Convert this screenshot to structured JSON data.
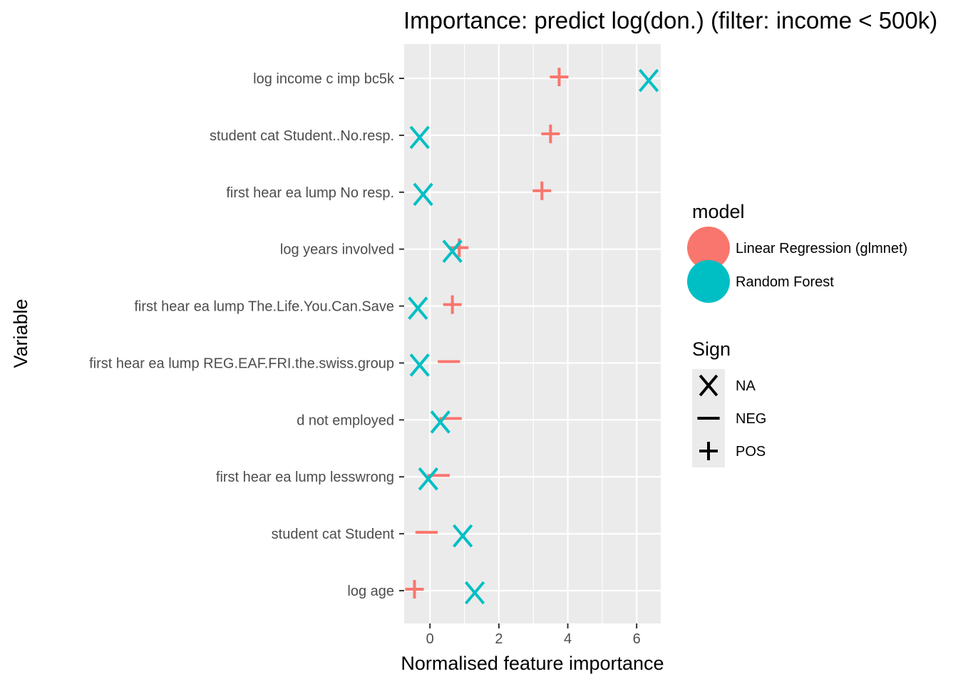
{
  "chart_data": {
    "type": "scatter",
    "title": "Importance: predict log(don.) (filter: income < 500k)",
    "xlabel": "Normalised feature importance",
    "ylabel": "Variable",
    "xlim": [
      -0.75,
      6.7
    ],
    "x_ticks": [
      0,
      2,
      4,
      6
    ],
    "grid": true,
    "legend_position": "right",
    "categories": [
      "log age",
      "student cat Student",
      "first hear ea lump lesswrong",
      "d not employed",
      "first hear ea lump REG.EAF.FRI.the.swiss.group",
      "first hear ea lump The.Life.You.Can.Save",
      "log years involved",
      "first hear ea lump No resp.",
      "student cat Student..No.resp.",
      "log income c imp bc5k"
    ],
    "series": [
      {
        "name": "Linear Regression (glmnet)",
        "color": "#F8766D",
        "points": [
          {
            "category": "log age",
            "x": -0.45,
            "sign": "POS"
          },
          {
            "category": "student cat Student",
            "x": -0.1,
            "sign": "NEG"
          },
          {
            "category": "first hear ea lump lesswrong",
            "x": 0.25,
            "sign": "NEG"
          },
          {
            "category": "d not employed",
            "x": 0.6,
            "sign": "NEG"
          },
          {
            "category": "first hear ea lump REG.EAF.FRI.the.swiss.group",
            "x": 0.55,
            "sign": "NEG"
          },
          {
            "category": "first hear ea lump The.Life.You.Can.Save",
            "x": 0.65,
            "sign": "POS"
          },
          {
            "category": "log years involved",
            "x": 0.85,
            "sign": "POS"
          },
          {
            "category": "first hear ea lump No resp.",
            "x": 3.25,
            "sign": "POS"
          },
          {
            "category": "student cat Student..No.resp.",
            "x": 3.5,
            "sign": "POS"
          },
          {
            "category": "log income c imp bc5k",
            "x": 3.75,
            "sign": "POS"
          }
        ]
      },
      {
        "name": "Random Forest",
        "color": "#00BFC4",
        "points": [
          {
            "category": "log age",
            "x": 1.3,
            "sign": "NA"
          },
          {
            "category": "student cat Student",
            "x": 0.95,
            "sign": "NA"
          },
          {
            "category": "first hear ea lump lesswrong",
            "x": -0.05,
            "sign": "NA"
          },
          {
            "category": "d not employed",
            "x": 0.3,
            "sign": "NA"
          },
          {
            "category": "first hear ea lump REG.EAF.FRI.the.swiss.group",
            "x": -0.3,
            "sign": "NA"
          },
          {
            "category": "first hear ea lump The.Life.You.Can.Save",
            "x": -0.35,
            "sign": "NA"
          },
          {
            "category": "log years involved",
            "x": 0.65,
            "sign": "NA"
          },
          {
            "category": "first hear ea lump No resp.",
            "x": -0.2,
            "sign": "NA"
          },
          {
            "category": "student cat Student..No.resp.",
            "x": -0.3,
            "sign": "NA"
          },
          {
            "category": "log income c imp bc5k",
            "x": 6.35,
            "sign": "NA"
          }
        ]
      }
    ],
    "legend": {
      "model_title": "model",
      "model_items": [
        {
          "label": "Linear Regression (glmnet)",
          "color": "#F8766D"
        },
        {
          "label": "Random Forest",
          "color": "#00BFC4"
        }
      ],
      "sign_title": "Sign",
      "sign_items": [
        {
          "label": "NA",
          "symbol": "x"
        },
        {
          "label": "NEG",
          "symbol": "minus"
        },
        {
          "label": "POS",
          "symbol": "plus"
        }
      ]
    }
  }
}
